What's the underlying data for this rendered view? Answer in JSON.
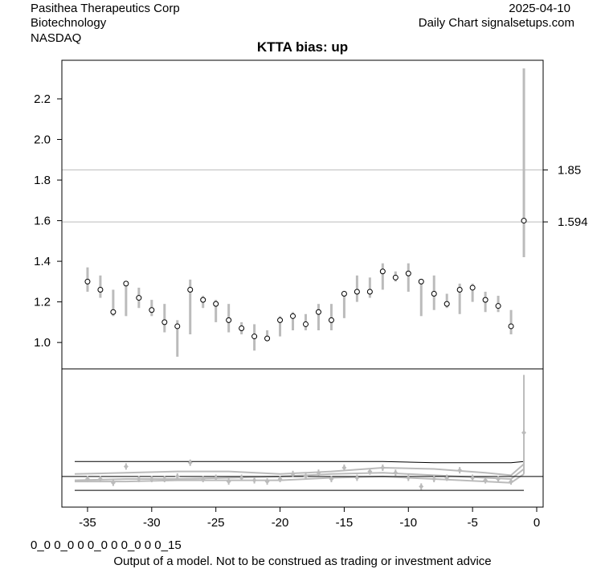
{
  "header": {
    "company": "Pasithea Therapeutics Corp",
    "industry": "Biotechnology",
    "exchange": "NASDAQ",
    "date": "2025-04-10",
    "source": "Daily Chart signalsetups.com"
  },
  "footer": {
    "code": "0_0 0_0 0 0_0 0 0_0 0 0_15",
    "disclaimer": "Output of a model. Not to be construed as trading or investment advice"
  },
  "colors": {
    "bars": "#bbbbbb",
    "lines": "#000000",
    "refline": "#bbbbbb"
  },
  "chart_data": {
    "type": "scatter",
    "title": "KTTA bias: up",
    "xlim": [
      -37,
      0.5
    ],
    "ylim": [
      0.87,
      2.39
    ],
    "x_ticks": [
      -35,
      -30,
      -25,
      -20,
      -15,
      -10,
      -5,
      0
    ],
    "y_ticks": [
      1.0,
      1.2,
      1.4,
      1.6,
      1.8,
      2.0,
      2.2
    ],
    "right_labels": [
      {
        "value": 1.85,
        "text": "1.85"
      },
      {
        "value": 1.594,
        "text": "1.594"
      }
    ],
    "series": [
      {
        "x": [
          -35,
          -34,
          -33,
          -32,
          -31,
          -30,
          -29,
          -28,
          -27,
          -26,
          -25,
          -24,
          -23,
          -22,
          -21,
          -20,
          -19,
          -18,
          -17,
          -16,
          -15,
          -14,
          -13,
          -12,
          -11,
          -10,
          -9,
          -8,
          -7,
          -6,
          -5,
          -4,
          -3,
          -2,
          -1
        ],
        "y": [
          1.3,
          1.26,
          1.15,
          1.29,
          1.22,
          1.16,
          1.1,
          1.08,
          1.26,
          1.21,
          1.19,
          1.11,
          1.07,
          1.03,
          1.02,
          1.11,
          1.13,
          1.09,
          1.15,
          1.11,
          1.24,
          1.25,
          1.25,
          1.35,
          1.32,
          1.34,
          1.3,
          1.24,
          1.19,
          1.26,
          1.27,
          1.21,
          1.18,
          1.08,
          1.6
        ],
        "low": [
          1.25,
          1.22,
          1.13,
          1.13,
          1.17,
          1.13,
          1.05,
          0.93,
          1.04,
          1.17,
          1.1,
          1.05,
          1.04,
          0.96,
          1.01,
          1.03,
          1.06,
          1.06,
          1.06,
          1.06,
          1.12,
          1.2,
          1.22,
          1.26,
          1.3,
          1.25,
          1.13,
          1.16,
          1.17,
          1.14,
          1.2,
          1.15,
          1.15,
          1.04,
          1.42
        ],
        "high": [
          1.37,
          1.33,
          1.26,
          1.3,
          1.27,
          1.21,
          1.19,
          1.11,
          1.31,
          1.23,
          1.21,
          1.19,
          1.1,
          1.09,
          1.06,
          1.13,
          1.15,
          1.14,
          1.19,
          1.19,
          1.25,
          1.33,
          1.32,
          1.39,
          1.35,
          1.39,
          1.3,
          1.33,
          1.24,
          1.29,
          1.29,
          1.25,
          1.23,
          1.16,
          2.35
        ]
      }
    ],
    "lower_panel": {
      "ylim": [
        0,
        1
      ],
      "upper_line": [
        0.3,
        0.3,
        0.3,
        0.3,
        0.3,
        0.3,
        0.3,
        0.29,
        0.29,
        0.29,
        0.3
      ],
      "lower_line": [
        0.07,
        0.07,
        0.07,
        0.07,
        0.07,
        0.07,
        0.07,
        0.07,
        0.07,
        0.07,
        0.07
      ],
      "mid_line": [
        0.18,
        0.18,
        0.18,
        0.18,
        0.18,
        0.18,
        0.18,
        0.18,
        0.18,
        0.18,
        0.18
      ],
      "line_x": [
        -36,
        -32,
        -28,
        -24,
        -20,
        -16,
        -12,
        -8,
        -4,
        -2,
        -1
      ],
      "bands": [
        [
          0.15,
          0.16,
          0.16,
          0.17,
          0.18,
          0.2,
          0.21,
          0.19,
          0.17,
          0.16,
          0.24
        ],
        [
          0.2,
          0.21,
          0.22,
          0.22,
          0.2,
          0.22,
          0.25,
          0.24,
          0.21,
          0.19,
          0.28
        ],
        [
          0.14,
          0.14,
          0.15,
          0.15,
          0.15,
          0.17,
          0.18,
          0.16,
          0.14,
          0.13,
          0.2
        ]
      ],
      "markers_y": [
        0.16,
        0.16,
        0.13,
        0.26,
        0.16,
        0.16,
        0.16,
        0.18,
        0.29,
        0.16,
        0.17,
        0.14,
        0.17,
        0.15,
        0.14,
        0.16,
        0.2,
        0.18,
        0.21,
        0.16,
        0.25,
        0.17,
        0.22,
        0.25,
        0.21,
        0.17,
        0.1,
        0.16,
        0.17,
        0.23,
        0.17,
        0.15,
        0.16,
        0.14,
        0.53
      ],
      "spike": {
        "x": -1,
        "low": 0.2,
        "high": 0.99
      }
    }
  }
}
